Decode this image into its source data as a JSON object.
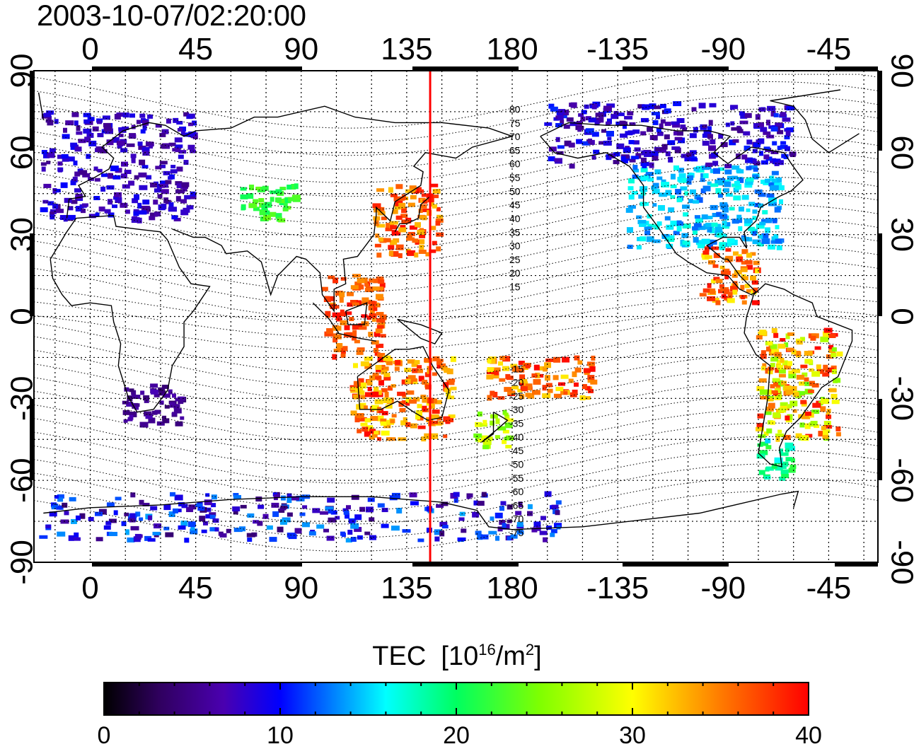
{
  "title": "2003-10-07/02:20:00",
  "map": {
    "lon_labels_top": [
      "0",
      "45",
      "90",
      "135",
      "180",
      "-135",
      "-90",
      "-45"
    ],
    "lon_labels_bottom": [
      "0",
      "45",
      "90",
      "135",
      "180",
      "-135",
      "-90",
      "-45"
    ],
    "lat_labels": [
      "90",
      "60",
      "30",
      "0",
      "-30",
      "-60",
      "-90"
    ],
    "lon_start": -24,
    "lon_end": 336,
    "red_meridian_lon": 145,
    "magnetic_latitude_labels": [
      "80",
      "75",
      "70",
      "65",
      "60",
      "55",
      "50",
      "45",
      "40",
      "35",
      "30",
      "25",
      "20",
      "15",
      "-15",
      "-20",
      "-25",
      "-30",
      "-35",
      "-40",
      "-45",
      "-50",
      "-55",
      "-60",
      "-65",
      "-70",
      "-75"
    ]
  },
  "colorbar": {
    "title_prefix": "TEC",
    "unit_base": "[10",
    "unit_exp": "16",
    "unit_mid": "/m",
    "unit_exp2": "2",
    "unit_end": "]",
    "ticks": [
      "0",
      "10",
      "20",
      "30",
      "40"
    ],
    "min": 0,
    "max": 40
  },
  "colors": {
    "meridian": "#ff0000",
    "grid": "#000000"
  },
  "tec_regions": [
    {
      "name": "europe",
      "lon": [
        -20,
        45
      ],
      "lat": [
        35,
        75
      ],
      "tec": [
        5,
        10
      ]
    },
    {
      "name": "north-america",
      "lon": [
        -130,
        -65
      ],
      "lat": [
        25,
        55
      ],
      "tec": [
        12,
        17
      ]
    },
    {
      "name": "canada-alaska",
      "lon": [
        -165,
        -60
      ],
      "lat": [
        55,
        78
      ],
      "tec": [
        5,
        11
      ]
    },
    {
      "name": "japan",
      "lon": [
        122,
        150
      ],
      "lat": [
        22,
        48
      ],
      "tec": [
        32,
        40
      ]
    },
    {
      "name": "southeast-asia",
      "lon": [
        100,
        125
      ],
      "lat": [
        -15,
        15
      ],
      "tec": [
        34,
        40
      ]
    },
    {
      "name": "australia",
      "lon": [
        112,
        155
      ],
      "lat": [
        -45,
        -15
      ],
      "tec": [
        30,
        40
      ]
    },
    {
      "name": "new-zealand",
      "lon": [
        165,
        180
      ],
      "lat": [
        -48,
        -35
      ],
      "tec": [
        24,
        30
      ]
    },
    {
      "name": "south-pacific",
      "lon": [
        170,
        215
      ],
      "lat": [
        -30,
        -15
      ],
      "tec": [
        30,
        40
      ]
    },
    {
      "name": "south-america",
      "lon": [
        -75,
        -40
      ],
      "lat": [
        -45,
        -5
      ],
      "tec": [
        24,
        40
      ]
    },
    {
      "name": "patagonia",
      "lon": [
        -75,
        -60
      ],
      "lat": [
        -60,
        -45
      ],
      "tec": [
        15,
        22
      ]
    },
    {
      "name": "antarctica",
      "lon": [
        -20,
        200
      ],
      "lat": [
        -82,
        -65
      ],
      "tec": [
        4,
        14
      ]
    },
    {
      "name": "africa-south",
      "lon": [
        15,
        40
      ],
      "lat": [
        -40,
        -25
      ],
      "tec": [
        4,
        7
      ]
    },
    {
      "name": "central-asia",
      "lon": [
        65,
        90
      ],
      "lat": [
        35,
        48
      ],
      "tec": [
        20,
        24
      ]
    },
    {
      "name": "central-america",
      "lon": [
        -100,
        -75
      ],
      "lat": [
        5,
        25
      ],
      "tec": [
        30,
        40
      ]
    }
  ]
}
